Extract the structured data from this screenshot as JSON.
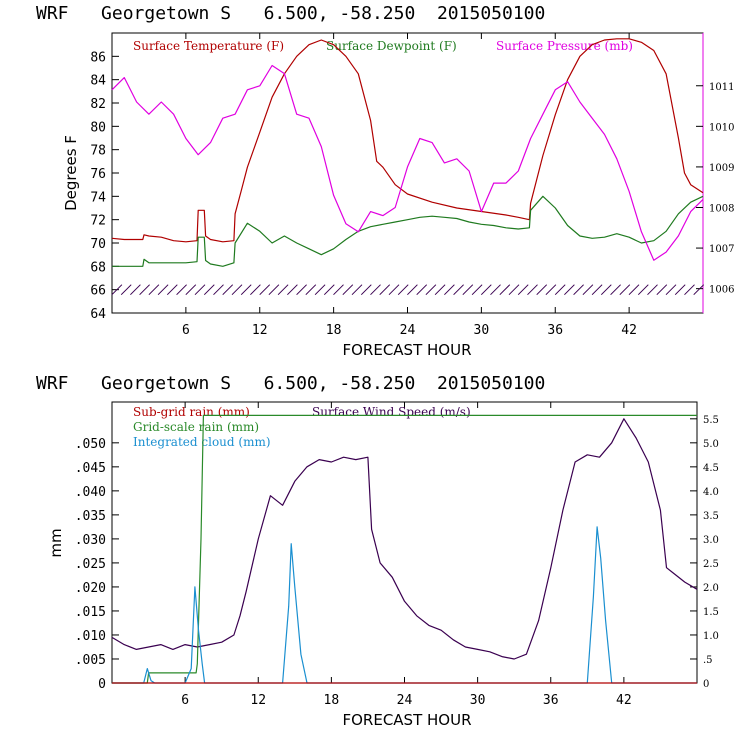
{
  "colors": {
    "temperature": "#b00000",
    "dewpoint": "#1f7a1f",
    "pressure": "#e000e0",
    "subgrid": "#b00000",
    "gridscale": "#2a8a2a",
    "cloud": "#1a8fd0",
    "wind": "#3a0050",
    "barb": "#3a0050"
  },
  "chart_data": [
    {
      "type": "line",
      "title": "WRF   Georgetown S   6.500, -58.250  2015050100",
      "xlabel": "FORECAST HOUR",
      "ylabel": "Degrees F",
      "xlim": [
        0,
        48
      ],
      "ylim": [
        64,
        88
      ],
      "y2lim": [
        1005.4,
        1012.3
      ],
      "xticks": [
        {
          "v": 6,
          "label": "6"
        },
        {
          "v": 12,
          "label": "12"
        },
        {
          "v": 18,
          "label": "18"
        },
        {
          "v": 24,
          "label": "24"
        },
        {
          "v": 30,
          "label": "30"
        },
        {
          "v": 36,
          "label": "36"
        },
        {
          "v": 42,
          "label": "42"
        }
      ],
      "yticks": [
        {
          "v": 64,
          "label": "64"
        },
        {
          "v": 66,
          "label": "66"
        },
        {
          "v": 68,
          "label": "68"
        },
        {
          "v": 70,
          "label": "70"
        },
        {
          "v": 72,
          "label": "72"
        },
        {
          "v": 74,
          "label": "74"
        },
        {
          "v": 76,
          "label": "76"
        },
        {
          "v": 78,
          "label": "78"
        },
        {
          "v": 80,
          "label": "80"
        },
        {
          "v": 82,
          "label": "82"
        },
        {
          "v": 84,
          "label": "84"
        },
        {
          "v": 86,
          "label": "86"
        }
      ],
      "y2ticks": [
        {
          "v": 1006,
          "label": "1006"
        },
        {
          "v": 1007,
          "label": "1007"
        },
        {
          "v": 1008,
          "label": "1008"
        },
        {
          "v": 1009,
          "label": "1009"
        },
        {
          "v": 1010,
          "label": "1010"
        },
        {
          "v": 1011,
          "label": "1011"
        }
      ],
      "legend": [
        {
          "label": "Surface Temperature (F)",
          "color_key": "temperature"
        },
        {
          "label": "Surface Dewpoint (F)",
          "color_key": "dewpoint"
        },
        {
          "label": "Surface Pressure (mb)",
          "color_key": "pressure"
        }
      ],
      "series": [
        {
          "name": "Surface Temperature (F)",
          "axis": "left",
          "color_key": "temperature",
          "x": [
            0,
            1,
            2,
            2.5,
            2.6,
            3,
            4,
            5,
            6,
            6.9,
            7,
            7.5,
            7.6,
            8,
            9,
            9.9,
            10,
            10.5,
            11,
            12,
            13,
            14,
            15,
            16,
            17,
            18,
            19,
            20,
            21,
            21.5,
            22,
            23,
            24,
            26,
            28,
            30,
            32,
            33,
            33.9,
            34,
            35,
            36,
            37,
            38,
            39,
            40,
            41,
            42,
            43,
            44,
            45,
            46,
            46.5,
            47,
            48
          ],
          "y": [
            70.4,
            70.3,
            70.3,
            70.3,
            70.7,
            70.6,
            70.5,
            70.2,
            70.1,
            70.2,
            72.8,
            72.8,
            70.6,
            70.3,
            70.1,
            70.2,
            72.5,
            74.5,
            76.5,
            79.5,
            82.5,
            84.5,
            86,
            87,
            87.4,
            87,
            86,
            84.5,
            80.5,
            77,
            76.5,
            75,
            74.2,
            73.5,
            73,
            72.7,
            72.4,
            72.2,
            72,
            73.4,
            77.5,
            81,
            84,
            86,
            87,
            87.4,
            87.5,
            87.5,
            87.2,
            86.5,
            84.5,
            79,
            76,
            75,
            74.3
          ]
        },
        {
          "name": "Surface Dewpoint (F)",
          "axis": "left",
          "color_key": "dewpoint",
          "x": [
            0,
            1,
            2,
            2.5,
            2.6,
            3,
            4,
            5,
            6,
            6.9,
            7,
            7.5,
            7.6,
            8,
            9,
            9.9,
            10,
            11,
            12,
            13,
            14,
            15,
            16,
            17,
            18,
            19,
            20,
            21,
            22,
            23,
            24,
            25,
            26,
            27,
            28,
            29,
            30,
            31,
            32,
            33,
            33.9,
            34,
            35,
            36,
            37,
            38,
            39,
            40,
            41,
            42,
            43,
            44,
            45,
            46,
            47,
            48
          ],
          "y": [
            68,
            68,
            68,
            68,
            68.6,
            68.3,
            68.3,
            68.3,
            68.3,
            68.4,
            70.5,
            70.5,
            68.5,
            68.2,
            68,
            68.3,
            70,
            71.7,
            71,
            70,
            70.6,
            70,
            69.5,
            69,
            69.5,
            70.3,
            71,
            71.4,
            71.6,
            71.8,
            72,
            72.2,
            72.3,
            72.2,
            72.1,
            71.8,
            71.6,
            71.5,
            71.3,
            71.2,
            71.3,
            72.8,
            74,
            73,
            71.5,
            70.6,
            70.4,
            70.5,
            70.8,
            70.5,
            70,
            70.2,
            71,
            72.5,
            73.5,
            74
          ]
        },
        {
          "name": "Surface Pressure (mb)",
          "axis": "right",
          "color_key": "pressure",
          "x": [
            0,
            1,
            2,
            3,
            4,
            5,
            6,
            7,
            8,
            9,
            10,
            11,
            12,
            13,
            14,
            15,
            16,
            17,
            18,
            19,
            20,
            21,
            22,
            23,
            24,
            25,
            26,
            27,
            28,
            29,
            30,
            31,
            32,
            33,
            34,
            35,
            36,
            37,
            38,
            39,
            40,
            41,
            42,
            43,
            44,
            45,
            46,
            47,
            48
          ],
          "y": [
            1010.9,
            1011.2,
            1010.6,
            1010.3,
            1010.6,
            1010.3,
            1009.7,
            1009.3,
            1009.6,
            1010.2,
            1010.3,
            1010.9,
            1011,
            1011.5,
            1011.3,
            1010.3,
            1010.2,
            1009.5,
            1008.3,
            1007.6,
            1007.4,
            1007.9,
            1007.8,
            1008,
            1009,
            1009.7,
            1009.6,
            1009.1,
            1009.2,
            1008.9,
            1007.9,
            1008.6,
            1008.6,
            1008.9,
            1009.7,
            1010.3,
            1010.9,
            1011.1,
            1010.6,
            1010.2,
            1009.8,
            1009.2,
            1008.4,
            1007.4,
            1006.7,
            1006.9,
            1007.3,
            1007.9,
            1008.2
          ]
        }
      ]
    },
    {
      "type": "line",
      "title": "WRF   Georgetown S   6.500, -58.250  2015050100",
      "xlabel": "FORECAST HOUR",
      "ylabel": "mm",
      "xlim": [
        0,
        48
      ],
      "ylim": [
        0,
        0.0585
      ],
      "y2lim": [
        0,
        5.85
      ],
      "xticks": [
        {
          "v": 6,
          "label": "6"
        },
        {
          "v": 12,
          "label": "12"
        },
        {
          "v": 18,
          "label": "18"
        },
        {
          "v": 24,
          "label": "24"
        },
        {
          "v": 30,
          "label": "30"
        },
        {
          "v": 36,
          "label": "36"
        },
        {
          "v": 42,
          "label": "42"
        }
      ],
      "yticks": [
        {
          "v": 0,
          "label": "0"
        },
        {
          "v": 0.005,
          "label": ".005"
        },
        {
          "v": 0.01,
          "label": ".010"
        },
        {
          "v": 0.015,
          "label": ".015"
        },
        {
          "v": 0.02,
          "label": ".020"
        },
        {
          "v": 0.025,
          "label": ".025"
        },
        {
          "v": 0.03,
          "label": ".030"
        },
        {
          "v": 0.035,
          "label": ".035"
        },
        {
          "v": 0.04,
          "label": ".040"
        },
        {
          "v": 0.045,
          "label": ".045"
        },
        {
          "v": 0.05,
          "label": ".050"
        }
      ],
      "y2ticks": [
        {
          "v": 0,
          "label": "0"
        },
        {
          "v": 0.5,
          "label": ".5"
        },
        {
          "v": 1.0,
          "label": "1.0"
        },
        {
          "v": 1.5,
          "label": "1.5"
        },
        {
          "v": 2.0,
          "label": "2.0"
        },
        {
          "v": 2.5,
          "label": "2.5"
        },
        {
          "v": 3.0,
          "label": "3.0"
        },
        {
          "v": 3.5,
          "label": "3.5"
        },
        {
          "v": 4.0,
          "label": "4.0"
        },
        {
          "v": 4.5,
          "label": "4.5"
        },
        {
          "v": 5.0,
          "label": "5.0"
        },
        {
          "v": 5.5,
          "label": "5.5"
        }
      ],
      "legend": [
        {
          "label": "Sub-grid rain (mm)",
          "color_key": "subgrid"
        },
        {
          "label": "Surface Wind Speed (m/s)",
          "color_key": "wind"
        },
        {
          "label": "Grid-scale rain (mm)",
          "color_key": "gridscale"
        },
        {
          "label": "Integrated cloud (mm)",
          "color_key": "cloud"
        }
      ],
      "series": [
        {
          "name": "Surface Wind Speed (m/s)",
          "axis": "right",
          "color_key": "wind",
          "x": [
            0,
            1,
            2,
            3,
            4,
            5,
            6,
            7,
            8,
            9,
            10,
            10.5,
            11,
            12,
            13,
            14,
            15,
            16,
            17,
            18,
            19,
            20,
            21,
            21.3,
            22,
            23,
            24,
            25,
            26,
            27,
            28,
            29,
            30,
            31,
            32,
            33,
            34,
            35,
            36,
            37,
            38,
            39,
            40,
            41,
            42,
            43,
            44,
            45,
            45.5,
            46,
            47,
            48
          ],
          "y": [
            0.95,
            0.8,
            0.7,
            0.75,
            0.8,
            0.7,
            0.8,
            0.75,
            0.8,
            0.85,
            1.0,
            1.4,
            1.9,
            3.0,
            3.9,
            3.7,
            4.2,
            4.5,
            4.65,
            4.6,
            4.7,
            4.65,
            4.7,
            3.2,
            2.5,
            2.2,
            1.7,
            1.4,
            1.2,
            1.1,
            0.9,
            0.75,
            0.7,
            0.65,
            0.55,
            0.5,
            0.6,
            1.3,
            2.4,
            3.6,
            4.6,
            4.75,
            4.7,
            5.0,
            5.5,
            5.1,
            4.6,
            3.6,
            2.4,
            2.3,
            2.1,
            1.95
          ]
        },
        {
          "name": "Grid-scale rain (mm)",
          "axis": "left",
          "color_key": "gridscale",
          "x": [
            0,
            2.9,
            3,
            6.9,
            7,
            7.3,
            7.5,
            48
          ],
          "y": [
            0,
            0,
            0.0021,
            0.0021,
            0.004,
            0.03,
            0.0557,
            0.0557
          ]
        },
        {
          "name": "Integrated cloud (mm)",
          "axis": "right",
          "color_key": "cloud",
          "x": [
            0,
            2.6,
            2.9,
            3.2,
            3.5,
            6,
            6.5,
            6.8,
            7.1,
            7.4,
            7.6,
            14,
            14.5,
            14.7,
            15,
            15.5,
            16,
            39,
            39.5,
            39.8,
            40.1,
            40.5,
            41,
            48
          ],
          "y": [
            0,
            0,
            0.3,
            0.05,
            0,
            0,
            0.3,
            2.0,
            1.1,
            0.4,
            0,
            0,
            1.6,
            2.9,
            2.0,
            0.6,
            0,
            0,
            1.8,
            3.25,
            2.6,
            1.3,
            0,
            0
          ]
        },
        {
          "name": "Sub-grid rain (mm)",
          "axis": "left",
          "color_key": "subgrid",
          "x": [
            0,
            48
          ],
          "y": [
            0,
            0
          ]
        }
      ]
    }
  ]
}
